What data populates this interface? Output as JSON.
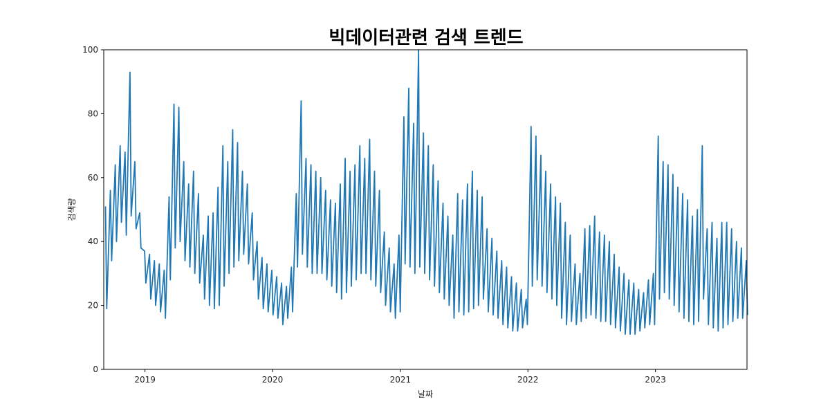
{
  "chart_data": {
    "type": "line",
    "title": "빅데이터관련 검색 트렌드",
    "xlabel": "날짜",
    "ylabel": "검색량",
    "x_range": [
      "2018-09-05",
      "2023-09-20"
    ],
    "ylim": [
      0,
      100
    ],
    "y_ticks": [
      0,
      20,
      40,
      60,
      80,
      100
    ],
    "x_ticks": [
      "2019",
      "2020",
      "2021",
      "2022",
      "2023"
    ],
    "grid": false,
    "legend": "none",
    "line_color": "#1f77b4",
    "series": [
      {
        "x": [
          "2018-09-10",
          "2018-09-24",
          "2018-10-08",
          "2018-10-22",
          "2018-11-05",
          "2018-11-19",
          "2018-12-03",
          "2018-12-17",
          "2018-12-31",
          "2019-01-14",
          "2019-01-28",
          "2019-02-11",
          "2019-02-25",
          "2019-03-11",
          "2019-03-25",
          "2019-04-08",
          "2019-04-22",
          "2019-05-06",
          "2019-05-20",
          "2019-06-03",
          "2019-06-17",
          "2019-07-01",
          "2019-07-15",
          "2019-07-29",
          "2019-08-12",
          "2019-08-26",
          "2019-09-09",
          "2019-09-23",
          "2019-10-07",
          "2019-10-21",
          "2019-11-04",
          "2019-11-18",
          "2019-12-02",
          "2019-12-16",
          "2019-12-30",
          "2020-01-13",
          "2020-01-27",
          "2020-02-10",
          "2020-02-24",
          "2020-03-09",
          "2020-03-23",
          "2020-04-06",
          "2020-04-20",
          "2020-05-04",
          "2020-05-18",
          "2020-06-01",
          "2020-06-15",
          "2020-06-29",
          "2020-07-13",
          "2020-07-27",
          "2020-08-10",
          "2020-08-24",
          "2020-09-07",
          "2020-09-21",
          "2020-10-05",
          "2020-10-19",
          "2020-11-02",
          "2020-11-16",
          "2020-11-30",
          "2020-12-14",
          "2020-12-28",
          "2021-01-11",
          "2021-01-25",
          "2021-02-08",
          "2021-02-22",
          "2021-03-08",
          "2021-03-22",
          "2021-04-05",
          "2021-04-19",
          "2021-05-03",
          "2021-05-17",
          "2021-05-31",
          "2021-06-14",
          "2021-06-28",
          "2021-07-12",
          "2021-07-26",
          "2021-08-09",
          "2021-08-23",
          "2021-09-06",
          "2021-09-20",
          "2021-10-04",
          "2021-10-18",
          "2021-11-01",
          "2021-11-15",
          "2021-11-29",
          "2021-12-13",
          "2021-12-27",
          "2022-01-10",
          "2022-01-24",
          "2022-02-07",
          "2022-02-21",
          "2022-03-07",
          "2022-03-21",
          "2022-04-04",
          "2022-04-18",
          "2022-05-02",
          "2022-05-16",
          "2022-05-30",
          "2022-06-13",
          "2022-06-27",
          "2022-07-11",
          "2022-07-25",
          "2022-08-08",
          "2022-08-22",
          "2022-09-05",
          "2022-09-19",
          "2022-10-03",
          "2022-10-17",
          "2022-10-31",
          "2022-11-14",
          "2022-11-28",
          "2022-12-12",
          "2022-12-26",
          "2023-01-09",
          "2023-01-23",
          "2023-02-06",
          "2023-02-20",
          "2023-03-06",
          "2023-03-20",
          "2023-04-03",
          "2023-04-17",
          "2023-05-01",
          "2023-05-15",
          "2023-05-29",
          "2023-06-12",
          "2023-06-26",
          "2023-07-10",
          "2023-07-24",
          "2023-08-07",
          "2023-08-21",
          "2023-09-04",
          "2023-09-18"
        ],
        "high": [
          51,
          56,
          64,
          70,
          68,
          93,
          65,
          49,
          37,
          36,
          34,
          33,
          31,
          54,
          83,
          82,
          65,
          58,
          62,
          55,
          42,
          48,
          49,
          57,
          70,
          65,
          75,
          71,
          62,
          58,
          49,
          40,
          35,
          33,
          31,
          29,
          27,
          26,
          32,
          55,
          84,
          66,
          64,
          62,
          60,
          56,
          53,
          52,
          58,
          66,
          62,
          64,
          70,
          66,
          72,
          62,
          56,
          43,
          38,
          33,
          42,
          79,
          88,
          77,
          100,
          74,
          70,
          64,
          59,
          52,
          48,
          42,
          55,
          53,
          58,
          62,
          56,
          54,
          44,
          41,
          37,
          34,
          32,
          29,
          27,
          25,
          22,
          76,
          73,
          67,
          62,
          58,
          54,
          52,
          46,
          42,
          33,
          30,
          44,
          45,
          48,
          43,
          42,
          40,
          36,
          32,
          30,
          28,
          27,
          25,
          24,
          28,
          30,
          73,
          65,
          64,
          61,
          57,
          55,
          53,
          48,
          50,
          70,
          44,
          46,
          41,
          46,
          46,
          44,
          40,
          38,
          34
        ],
        "low": [
          19,
          34,
          40,
          46,
          42,
          48,
          44,
          38,
          27,
          22,
          20,
          18,
          16,
          28,
          38,
          40,
          34,
          32,
          30,
          27,
          22,
          20,
          19,
          20,
          26,
          30,
          32,
          34,
          36,
          33,
          28,
          22,
          19,
          18,
          17,
          16,
          14,
          16,
          18,
          32,
          36,
          32,
          30,
          30,
          30,
          28,
          26,
          24,
          22,
          24,
          26,
          28,
          30,
          30,
          28,
          26,
          24,
          20,
          18,
          16,
          18,
          33,
          32,
          30,
          32,
          30,
          28,
          26,
          24,
          22,
          20,
          16,
          18,
          17,
          18,
          19,
          20,
          22,
          18,
          17,
          16,
          14,
          13,
          12,
          12,
          13,
          14,
          26,
          28,
          26,
          24,
          22,
          20,
          16,
          14,
          15,
          14,
          15,
          16,
          17,
          16,
          15,
          15,
          14,
          13,
          12,
          11,
          11,
          11,
          12,
          13,
          14,
          14,
          22,
          24,
          22,
          20,
          18,
          16,
          15,
          14,
          15,
          22,
          14,
          13,
          12,
          13,
          14,
          15,
          16,
          16,
          17
        ]
      }
    ]
  }
}
